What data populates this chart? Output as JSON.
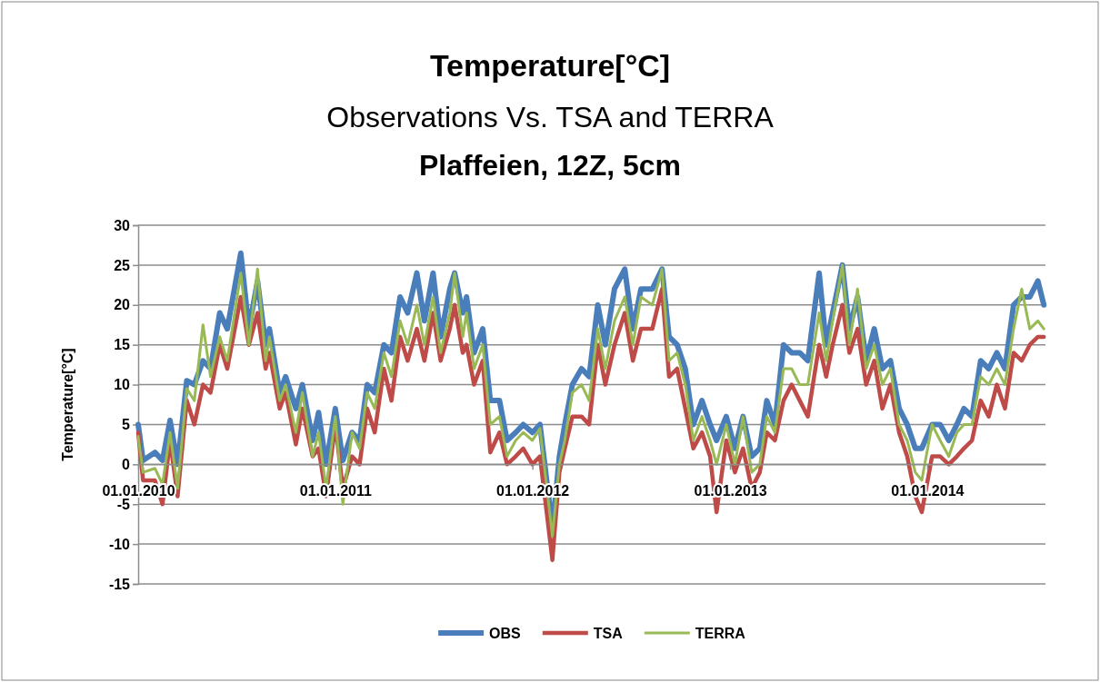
{
  "chart_data": {
    "type": "line",
    "title": "Temperature[°C]",
    "subtitle": "Observations Vs. TSA and TERRA",
    "annotations": [
      "Plaffeien, 12Z, 5cm"
    ],
    "ylabel": "Temperature[°C]",
    "x": [
      "2010-01-01",
      "2010-01-10",
      "2010-02-01",
      "2010-02-15",
      "2010-03-01",
      "2010-03-15",
      "2010-04-01",
      "2010-04-15",
      "2010-05-01",
      "2010-05-15",
      "2010-06-01",
      "2010-06-15",
      "2010-07-10",
      "2010-07-25",
      "2010-08-10",
      "2010-08-25",
      "2010-09-01",
      "2010-09-20",
      "2010-10-01",
      "2010-10-20",
      "2010-11-01",
      "2010-11-20",
      "2010-12-01",
      "2010-12-15",
      "2011-01-01",
      "2011-01-15",
      "2011-02-01",
      "2011-02-15",
      "2011-03-01",
      "2011-03-15",
      "2011-04-01",
      "2011-04-15",
      "2011-05-01",
      "2011-05-15",
      "2011-06-01",
      "2011-06-15",
      "2011-07-01",
      "2011-07-15",
      "2011-08-01",
      "2011-08-10",
      "2011-08-25",
      "2011-09-01",
      "2011-09-15",
      "2011-10-01",
      "2011-10-15",
      "2011-11-01",
      "2011-11-15",
      "2011-12-01",
      "2011-12-15",
      "2012-01-01",
      "2012-01-15",
      "2012-02-07",
      "2012-02-20",
      "2012-03-01",
      "2012-03-15",
      "2012-04-01",
      "2012-04-15",
      "2012-05-01",
      "2012-05-15",
      "2012-06-01",
      "2012-06-20",
      "2012-07-05",
      "2012-07-20",
      "2012-08-10",
      "2012-08-28",
      "2012-09-10",
      "2012-09-25",
      "2012-10-10",
      "2012-10-25",
      "2012-11-10",
      "2012-11-25",
      "2012-12-07",
      "2012-12-25",
      "2013-01-10",
      "2013-01-25",
      "2013-02-10",
      "2013-02-25",
      "2013-03-10",
      "2013-03-25",
      "2013-04-10",
      "2013-04-25",
      "2013-05-10",
      "2013-05-25",
      "2013-06-15",
      "2013-06-28",
      "2013-07-10",
      "2013-07-28",
      "2013-08-10",
      "2013-08-25",
      "2013-09-10",
      "2013-09-25",
      "2013-10-10",
      "2013-10-25",
      "2013-11-10",
      "2013-11-25",
      "2013-12-10",
      "2013-12-22",
      "2014-01-10",
      "2014-01-25",
      "2014-02-10",
      "2014-02-25",
      "2014-03-10",
      "2014-03-25",
      "2014-04-10",
      "2014-04-25",
      "2014-05-10",
      "2014-05-25",
      "2014-06-10",
      "2014-06-25",
      "2014-07-10",
      "2014-07-25",
      "2014-08-05"
    ],
    "series": [
      {
        "name": "OBS",
        "color": "#4a7ebb",
        "values": [
          5,
          0.5,
          1.5,
          0.5,
          5.5,
          0,
          10.5,
          10,
          13,
          12,
          19,
          17,
          26.5,
          17,
          23,
          15,
          17,
          9,
          11,
          7,
          10,
          3,
          6.5,
          0,
          7,
          0.5,
          4,
          3,
          10,
          9,
          15,
          14,
          21,
          19,
          24,
          18,
          24,
          16,
          22,
          24,
          19,
          21,
          14,
          17,
          8,
          8,
          3,
          4,
          5,
          4,
          5,
          -8,
          1,
          5,
          10,
          12,
          11,
          20,
          15,
          22,
          24.5,
          17,
          22,
          22,
          24.5,
          16,
          15,
          12,
          5,
          8,
          5,
          3,
          6,
          2,
          6,
          1,
          2,
          8,
          5,
          15,
          14,
          14,
          13,
          24,
          15,
          19,
          25,
          17,
          21,
          13,
          17,
          12,
          13,
          7,
          5,
          2,
          2,
          5,
          5,
          3,
          5,
          7,
          6,
          13,
          12,
          14,
          12,
          20,
          21,
          21,
          23,
          20
        ]
      },
      {
        "name": "TSA",
        "color": "#be4b48",
        "values": [
          4,
          -2,
          -2,
          -5,
          3,
          -4,
          8,
          5,
          10,
          9,
          15,
          12,
          21,
          15,
          19,
          12,
          14,
          7,
          9,
          2.5,
          7,
          1,
          2,
          -4,
          5,
          -3,
          1,
          0,
          7,
          4,
          12,
          8,
          16,
          13,
          17,
          13,
          19,
          13,
          17,
          20,
          14,
          15,
          10,
          13,
          1.5,
          4,
          0,
          1,
          2,
          0,
          1,
          -12,
          -1,
          2,
          6,
          6,
          5,
          15,
          10,
          15,
          19,
          13,
          17,
          17,
          22,
          11,
          12,
          7,
          2,
          4,
          1,
          -6,
          3,
          -1,
          2,
          -3,
          -1,
          4,
          3,
          8,
          10,
          8,
          6,
          15,
          11,
          15,
          20,
          14,
          17,
          10,
          13,
          7,
          10,
          4,
          1,
          -4,
          -6,
          1,
          1,
          0,
          1,
          2,
          3,
          8,
          6,
          10,
          7,
          14,
          13,
          15,
          16,
          16
        ]
      },
      {
        "name": "TERRA",
        "color": "#98b954",
        "values": [
          3.5,
          -1,
          -0.5,
          -2.5,
          4,
          -3,
          9.5,
          8,
          17.5,
          11,
          16,
          13,
          24,
          15,
          24.5,
          13,
          16,
          8,
          10,
          4,
          9,
          1,
          4,
          -3,
          6,
          -5,
          4,
          2,
          9,
          7,
          14,
          11,
          18,
          15,
          20,
          15,
          21,
          14,
          19,
          24,
          16,
          19,
          12,
          15,
          5,
          6,
          1,
          3,
          4,
          3,
          4.5,
          -9,
          0,
          3,
          9,
          10,
          8,
          17,
          12,
          18,
          21,
          15,
          21,
          20,
          24.5,
          13,
          14,
          10,
          3,
          6,
          3,
          0,
          5,
          0,
          6,
          -1,
          0,
          6,
          4,
          12,
          12,
          10,
          10,
          19,
          13,
          18,
          25,
          15,
          22,
          12,
          15,
          10,
          12,
          5,
          3,
          -1,
          -2,
          5,
          3,
          1,
          4,
          5,
          5,
          11,
          10,
          12,
          10,
          17,
          22,
          17,
          18,
          17
        ]
      }
    ],
    "xlim": [
      "2010-01-01",
      "2014-08-08"
    ],
    "xticks": [
      {
        "value": "2010-01-01",
        "label": "01.01.2010"
      },
      {
        "value": "2011-01-01",
        "label": "01.01.2011"
      },
      {
        "value": "2012-01-01",
        "label": "01.01.2012"
      },
      {
        "value": "2013-01-01",
        "label": "01.01.2013"
      },
      {
        "value": "2014-01-01",
        "label": "01.01.2014"
      }
    ],
    "ylim": [
      -15,
      30
    ],
    "yticks": [
      -15,
      -10,
      -5,
      0,
      5,
      10,
      15,
      20,
      25,
      30
    ],
    "grid": "y",
    "legend": "bottom"
  }
}
